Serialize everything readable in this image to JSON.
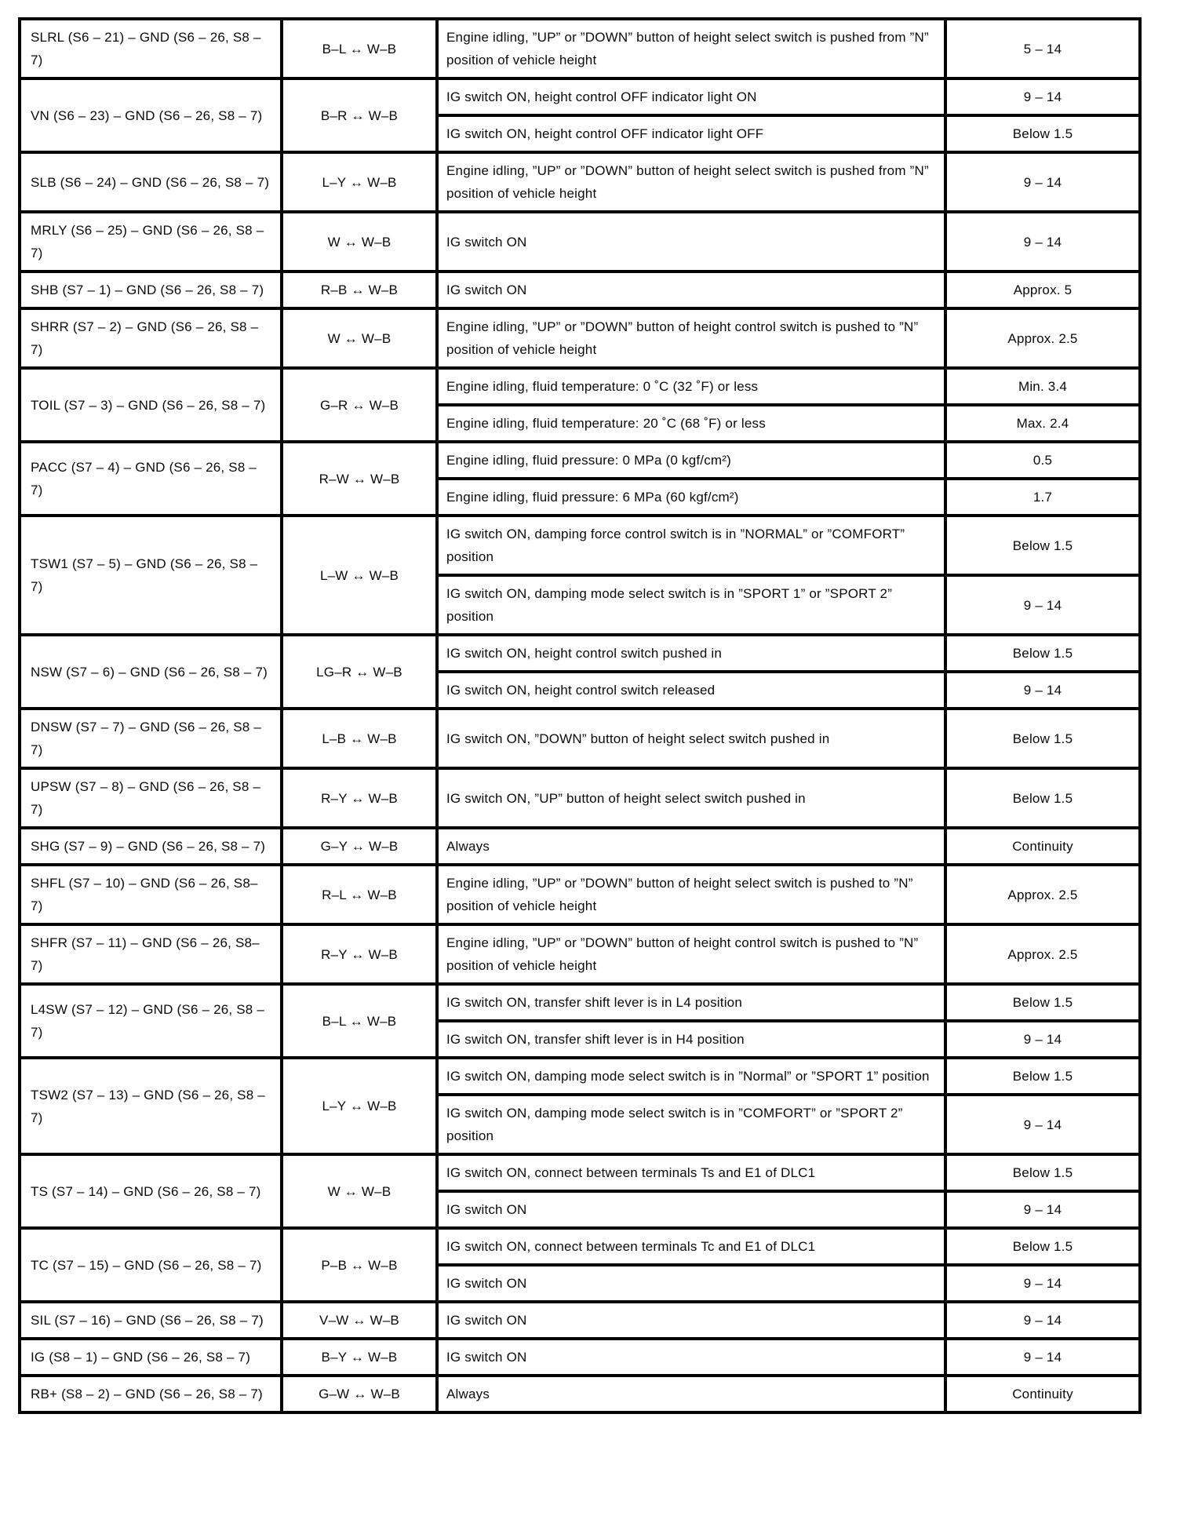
{
  "page": {
    "background_color": "#ffffff",
    "border_color": "#000000",
    "description": "Terminal-to-ground inspection table (suspension ECU terminal voltage / resistance specifications)"
  },
  "table": {
    "columns": [
      "terminal",
      "wire_color",
      "condition",
      "specified_value"
    ],
    "rows": [
      {
        "terminal": "SLRL (S6 – 21) – GND (S6 – 26, S8 – 7)",
        "wire": "B–L ↔ W–B",
        "conditions": [
          {
            "text": "Engine idling, ”UP” or ”DOWN” button of height select switch is pushed from ”N” position of vehicle height",
            "value": "5 – 14"
          }
        ]
      },
      {
        "terminal": "VN (S6 – 23) – GND (S6 – 26, S8 – 7)",
        "wire": "B–R ↔ W–B",
        "conditions": [
          {
            "text": "IG switch ON, height control OFF indicator light ON",
            "value": "9 – 14"
          },
          {
            "text": "IG switch ON, height control OFF indicator light OFF",
            "value": "Below 1.5"
          }
        ]
      },
      {
        "terminal": "SLB (S6 – 24) – GND (S6 – 26, S8 – 7)",
        "wire": "L–Y ↔ W–B",
        "conditions": [
          {
            "text": "Engine idling, ”UP” or ”DOWN” button of height select switch is pushed from ”N” position of vehicle height",
            "value": "9 – 14"
          }
        ]
      },
      {
        "terminal": "MRLY (S6 – 25) – GND (S6 – 26, S8 – 7)",
        "wire": "W ↔ W–B",
        "conditions": [
          {
            "text": "IG switch ON",
            "value": "9 – 14"
          }
        ]
      },
      {
        "terminal": "SHB (S7 – 1) – GND (S6 – 26, S8 – 7)",
        "wire": "R–B ↔ W–B",
        "conditions": [
          {
            "text": "IG switch ON",
            "value": "Approx. 5"
          }
        ]
      },
      {
        "terminal": "SHRR (S7 – 2) – GND (S6 – 26, S8 – 7)",
        "wire": "W ↔ W–B",
        "conditions": [
          {
            "text": "Engine idling, ”UP” or ”DOWN” button of height control switch is pushed to ”N” position of vehicle height",
            "value": "Approx. 2.5"
          }
        ]
      },
      {
        "terminal": "TOIL (S7 – 3) – GND (S6 – 26, S8 – 7)",
        "wire": "G–R ↔ W–B",
        "conditions": [
          {
            "text": "Engine idling, fluid temperature: 0 ˚C (32 ˚F) or less",
            "value": "Min. 3.4"
          },
          {
            "text": "Engine idling, fluid temperature: 20 ˚C (68 ˚F) or less",
            "value": "Max. 2.4"
          }
        ]
      },
      {
        "terminal": "PACC (S7 – 4) – GND (S6 – 26, S8 – 7)",
        "wire": "R–W ↔ W–B",
        "conditions": [
          {
            "text": "Engine idling, fluid pressure: 0 MPa (0 kgf/cm²)",
            "value": "0.5"
          },
          {
            "text": "Engine idling, fluid pressure: 6 MPa (60 kgf/cm²)",
            "value": "1.7"
          }
        ]
      },
      {
        "terminal": "TSW1 (S7 – 5) – GND (S6 – 26, S8 – 7)",
        "wire": "L–W ↔ W–B",
        "conditions": [
          {
            "text": "IG switch ON, damping force control switch is in ”NORMAL” or ”COMFORT” position",
            "value": "Below 1.5"
          },
          {
            "text": "IG switch ON, damping mode select switch is in ”SPORT 1” or ”SPORT 2” position",
            "value": "9 – 14"
          }
        ]
      },
      {
        "terminal": "NSW (S7 – 6) – GND (S6 – 26, S8 – 7)",
        "wire": "LG–R ↔ W–B",
        "conditions": [
          {
            "text": "IG switch ON, height control switch pushed in",
            "value": "Below 1.5"
          },
          {
            "text": "IG switch ON, height control switch released",
            "value": "9 – 14"
          }
        ]
      },
      {
        "terminal": "DNSW (S7 – 7) – GND (S6 – 26, S8 – 7)",
        "wire": "L–B ↔ W–B",
        "conditions": [
          {
            "text": "IG switch ON, ”DOWN” button of height select switch pushed in",
            "value": "Below 1.5"
          }
        ]
      },
      {
        "terminal": "UPSW (S7 – 8) – GND (S6 – 26, S8 – 7)",
        "wire": "R–Y ↔ W–B",
        "conditions": [
          {
            "text": "IG switch ON, ”UP” button of height select switch pushed in",
            "value": "Below 1.5"
          }
        ]
      },
      {
        "terminal": "SHG (S7 – 9) – GND (S6 – 26, S8 – 7)",
        "wire": "G–Y ↔ W–B",
        "conditions": [
          {
            "text": "Always",
            "value": "Continuity"
          }
        ]
      },
      {
        "terminal": "SHFL (S7 – 10) – GND (S6 – 26, S8– 7)",
        "wire": "R–L ↔ W–B",
        "conditions": [
          {
            "text": "Engine idling, ”UP” or ”DOWN” button of height select switch is pushed to ”N” position of vehicle height",
            "value": "Approx. 2.5"
          }
        ]
      },
      {
        "terminal": "SHFR (S7 – 11) – GND (S6 – 26, S8– 7)",
        "wire": "R–Y ↔ W–B",
        "conditions": [
          {
            "text": "Engine idling, ”UP” or ”DOWN” button of height control switch is pushed to ”N” position of vehicle height",
            "value": "Approx. 2.5"
          }
        ]
      },
      {
        "terminal": "L4SW (S7 – 12) – GND (S6 – 26, S8 – 7)",
        "wire": "B–L ↔ W–B",
        "conditions": [
          {
            "text": "IG switch ON, transfer shift lever is in L4 position",
            "value": "Below 1.5"
          },
          {
            "text": "IG switch ON, transfer shift lever is in H4 position",
            "value": "9 – 14"
          }
        ]
      },
      {
        "terminal": "TSW2 (S7 – 13) – GND (S6 – 26, S8 – 7)",
        "wire": "L–Y ↔ W–B",
        "conditions": [
          {
            "text": "IG switch ON, damping mode select switch is in ”Normal” or ”SPORT 1” position",
            "value": "Below 1.5"
          },
          {
            "text": "IG switch ON, damping mode select switch is in ”COMFORT” or ”SPORT 2” position",
            "value": "9 – 14"
          }
        ]
      },
      {
        "terminal": "TS (S7 – 14) – GND (S6 – 26, S8 – 7)",
        "wire": "W ↔ W–B",
        "conditions": [
          {
            "text": "IG switch ON, connect between terminals Ts and E1 of DLC1",
            "value": "Below 1.5"
          },
          {
            "text": "IG switch ON",
            "value": "9 – 14"
          }
        ]
      },
      {
        "terminal": "TC (S7 – 15) – GND (S6 – 26, S8 – 7)",
        "wire": "P–B ↔ W–B",
        "conditions": [
          {
            "text": "IG switch ON, connect between terminals Tc and E1 of DLC1",
            "value": "Below 1.5"
          },
          {
            "text": "IG switch ON",
            "value": "9 – 14"
          }
        ]
      },
      {
        "terminal": "SIL (S7 – 16) – GND (S6 – 26, S8 – 7)",
        "wire": "V–W ↔ W–B",
        "conditions": [
          {
            "text": "IG switch ON",
            "value": "9 – 14"
          }
        ]
      },
      {
        "terminal": "IG (S8 – 1) – GND (S6 – 26, S8 – 7)",
        "wire": "B–Y ↔ W–B",
        "conditions": [
          {
            "text": "IG switch ON",
            "value": "9 – 14"
          }
        ]
      },
      {
        "terminal": "RB+ (S8 – 2) – GND (S6 – 26, S8 – 7)",
        "wire": "G–W ↔ W–B",
        "conditions": [
          {
            "text": "Always",
            "value": "Continuity"
          }
        ]
      }
    ]
  }
}
